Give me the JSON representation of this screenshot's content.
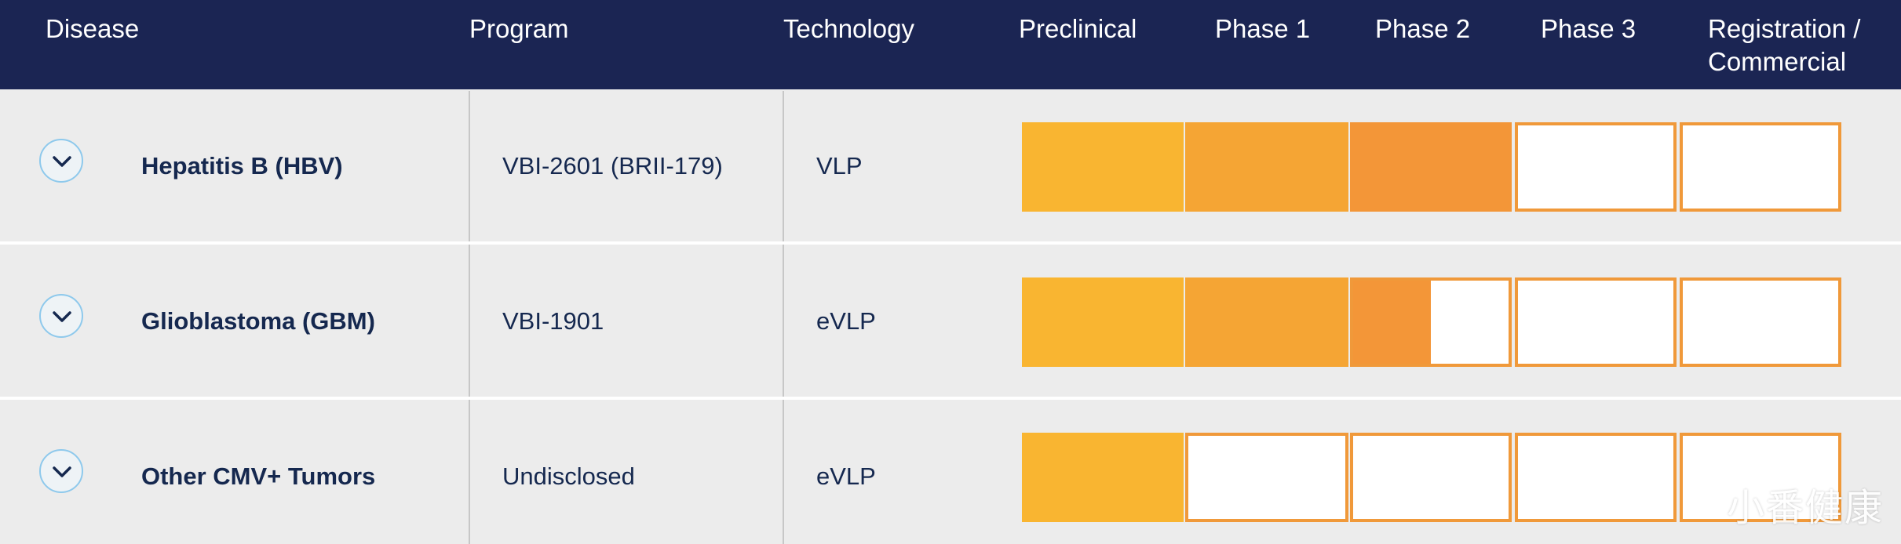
{
  "header": {
    "disease": "Disease",
    "program": "Program",
    "technology": "Technology",
    "preclinical": "Preclinical",
    "phase1": "Phase 1",
    "phase2": "Phase 2",
    "phase3": "Phase 3",
    "registration_line1": "Registration /",
    "registration_line2": "Commercial"
  },
  "colors": {
    "header_bg": "#1b2553",
    "preclinical": "#f9b531",
    "phase1": "#f5a534",
    "phase2": "#f39638",
    "empty_border": "#f0993a"
  },
  "rows": [
    {
      "disease": "Hepatitis B (HBV)",
      "program": "VBI-2601 (BRII-179)",
      "technology": "VLP",
      "progress": {
        "preclinical": 1.0,
        "phase1": 1.0,
        "phase2": 1.0,
        "phase3": 0.0,
        "registration": 0.0
      }
    },
    {
      "disease": "Glioblastoma (GBM)",
      "program": "VBI-1901",
      "technology": "eVLP",
      "progress": {
        "preclinical": 1.0,
        "phase1": 1.0,
        "phase2": 0.5,
        "phase3": 0.0,
        "registration": 0.0
      }
    },
    {
      "disease": "Other CMV+ Tumors",
      "program": "Undisclosed",
      "technology": "eVLP",
      "progress": {
        "preclinical": 1.0,
        "phase1": 0.0,
        "phase2": 0.0,
        "phase3": 0.0,
        "registration": 0.0
      }
    }
  ],
  "watermark": "小番健康"
}
